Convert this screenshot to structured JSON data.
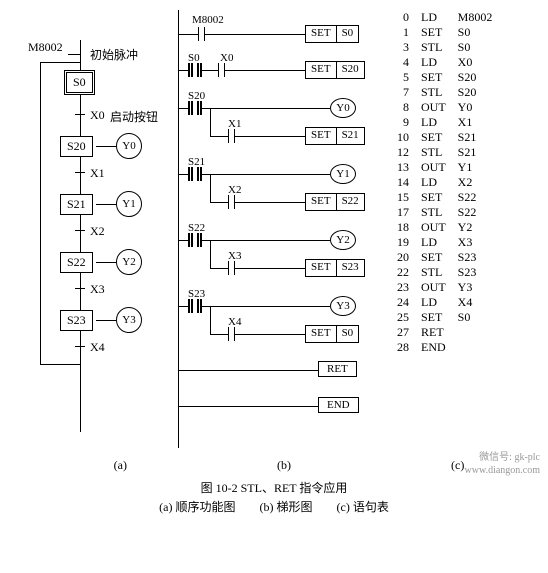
{
  "sfc": {
    "title_contact": "M8002",
    "title_label": "初始脉冲",
    "s0": "S0",
    "x0": "X0",
    "x0_label": "启动按钮",
    "s20": "S20",
    "y0": "Y0",
    "x1": "X1",
    "s21": "S21",
    "y1": "Y1",
    "x2": "X2",
    "s22": "S22",
    "y2": "Y2",
    "x3": "X3",
    "s23": "S23",
    "y3": "Y3",
    "x4": "X4",
    "panel_label": "(a)"
  },
  "ladder": {
    "m8002": "M8002",
    "set": "SET",
    "s0": "S0",
    "x0": "X0",
    "s20": "S20",
    "s21": "S21",
    "s22": "S22",
    "s23": "S23",
    "x1": "X1",
    "x2": "X2",
    "x3": "X3",
    "x4": "X4",
    "y0": "Y0",
    "y1": "Y1",
    "y2": "Y2",
    "y3": "Y3",
    "ret": "RET",
    "end": "END",
    "panel_label": "(b)"
  },
  "il": {
    "rows": [
      [
        "0",
        "LD",
        "M8002"
      ],
      [
        "1",
        "SET",
        "S0"
      ],
      [
        "3",
        "STL",
        "S0"
      ],
      [
        "4",
        "LD",
        "X0"
      ],
      [
        "5",
        "SET",
        "S20"
      ],
      [
        "7",
        "STL",
        "S20"
      ],
      [
        "8",
        "OUT",
        "Y0"
      ],
      [
        "9",
        "LD",
        "X1"
      ],
      [
        "10",
        "SET",
        "S21"
      ],
      [
        "12",
        "STL",
        "S21"
      ],
      [
        "13",
        "OUT",
        "Y1"
      ],
      [
        "14",
        "LD",
        "X2"
      ],
      [
        "15",
        "SET",
        "S22"
      ],
      [
        "17",
        "STL",
        "S22"
      ],
      [
        "18",
        "OUT",
        "Y2"
      ],
      [
        "19",
        "LD",
        "X3"
      ],
      [
        "20",
        "SET",
        "S23"
      ],
      [
        "22",
        "STL",
        "S23"
      ],
      [
        "23",
        "OUT",
        "Y3"
      ],
      [
        "24",
        "LD",
        "X4"
      ],
      [
        "25",
        "SET",
        "S0"
      ],
      [
        "27",
        "RET",
        ""
      ],
      [
        "28",
        "END",
        ""
      ]
    ],
    "panel_label": "(c)"
  },
  "caption": "图 10-2    STL、RET 指令应用",
  "subcaption_a": "(a)  顺序功能图",
  "subcaption_b": "(b)  梯形图",
  "subcaption_c": "(c)  语句表",
  "watermark1": "微信号: gk-plc",
  "watermark2": "www.diangon.com"
}
